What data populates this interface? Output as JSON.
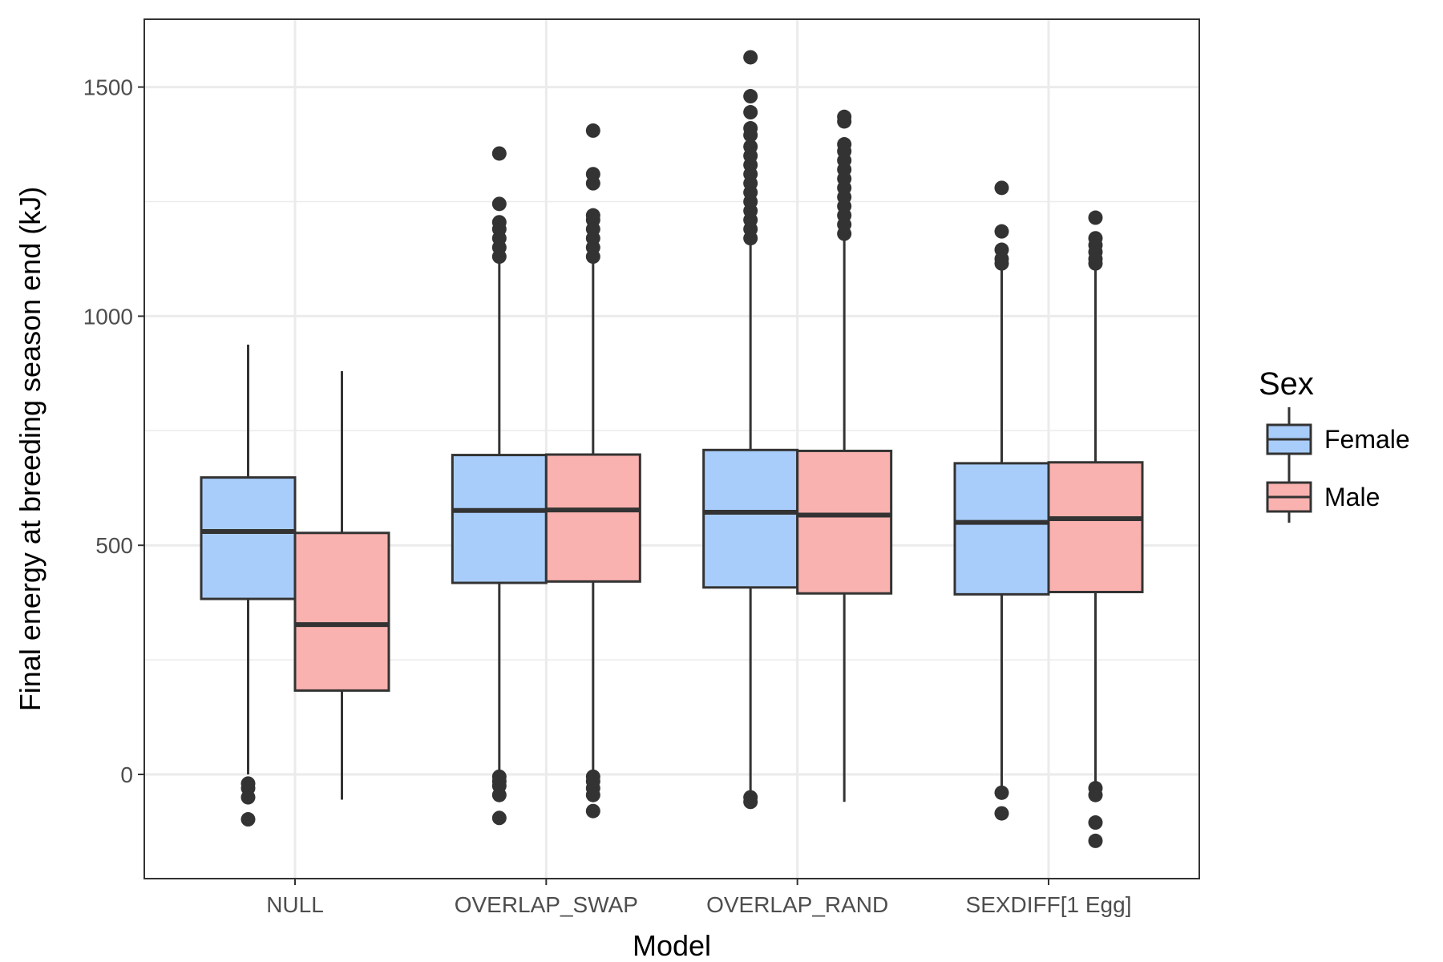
{
  "chart_data": {
    "type": "boxplot",
    "xlabel": "Model",
    "ylabel": "Final energy at breeding season end (kJ)",
    "ylim": [
      -230,
      1650
    ],
    "y_ticks": [
      0,
      500,
      1000,
      1500
    ],
    "y_tick_labels": [
      "0",
      "500",
      "1000",
      "1500"
    ],
    "grid": true,
    "legend": {
      "title": "Sex",
      "position": "right"
    },
    "categories": [
      "NULL",
      "OVERLAP_SWAP",
      "OVERLAP_RAND",
      "SEXDIFF[1 Egg]"
    ],
    "series": [
      {
        "name": "Female",
        "color": "#a9cdfb",
        "boxes": [
          {
            "whisker_low": 0,
            "q1": 383,
            "median": 530,
            "q3": 648,
            "whisker_high": 938,
            "outliers": [
              -20,
              -30,
              -50,
              -98
            ]
          },
          {
            "whisker_low": 0,
            "q1": 418,
            "median": 576,
            "q3": 697,
            "whisker_high": 1120,
            "outliers": [
              -5,
              -15,
              -25,
              -45,
              -95,
              1130,
              1150,
              1170,
              1190,
              1205,
              1245,
              1355
            ]
          },
          {
            "whisker_low": -40,
            "q1": 408,
            "median": 572,
            "q3": 708,
            "whisker_high": 1160,
            "outliers": [
              -50,
              -60,
              1170,
              1190,
              1210,
              1230,
              1250,
              1270,
              1290,
              1310,
              1330,
              1350,
              1370,
              1395,
              1410,
              1445,
              1480,
              1565
            ]
          },
          {
            "whisker_low": -25,
            "q1": 393,
            "median": 550,
            "q3": 679,
            "whisker_high": 1105,
            "outliers": [
              -40,
              -85,
              1115,
              1125,
              1145,
              1185,
              1280
            ]
          }
        ]
      },
      {
        "name": "Male",
        "color": "#f9b2af",
        "boxes": [
          {
            "whisker_low": -55,
            "q1": 183,
            "median": 327,
            "q3": 527,
            "whisker_high": 880,
            "outliers": []
          },
          {
            "whisker_low": 0,
            "q1": 421,
            "median": 577,
            "q3": 698,
            "whisker_high": 1120,
            "outliers": [
              -5,
              -15,
              -30,
              -45,
              -80,
              1130,
              1150,
              1170,
              1190,
              1210,
              1220,
              1290,
              1310,
              1405
            ]
          },
          {
            "whisker_low": -60,
            "q1": 395,
            "median": 566,
            "q3": 706,
            "whisker_high": 1170,
            "outliers": [
              1180,
              1200,
              1220,
              1240,
              1260,
              1280,
              1300,
              1320,
              1340,
              1360,
              1375,
              1425,
              1435
            ]
          },
          {
            "whisker_low": -25,
            "q1": 398,
            "median": 558,
            "q3": 681,
            "whisker_high": 1105,
            "outliers": [
              -30,
              -45,
              -105,
              -145,
              1115,
              1125,
              1140,
              1155,
              1170,
              1215
            ]
          }
        ]
      }
    ]
  }
}
